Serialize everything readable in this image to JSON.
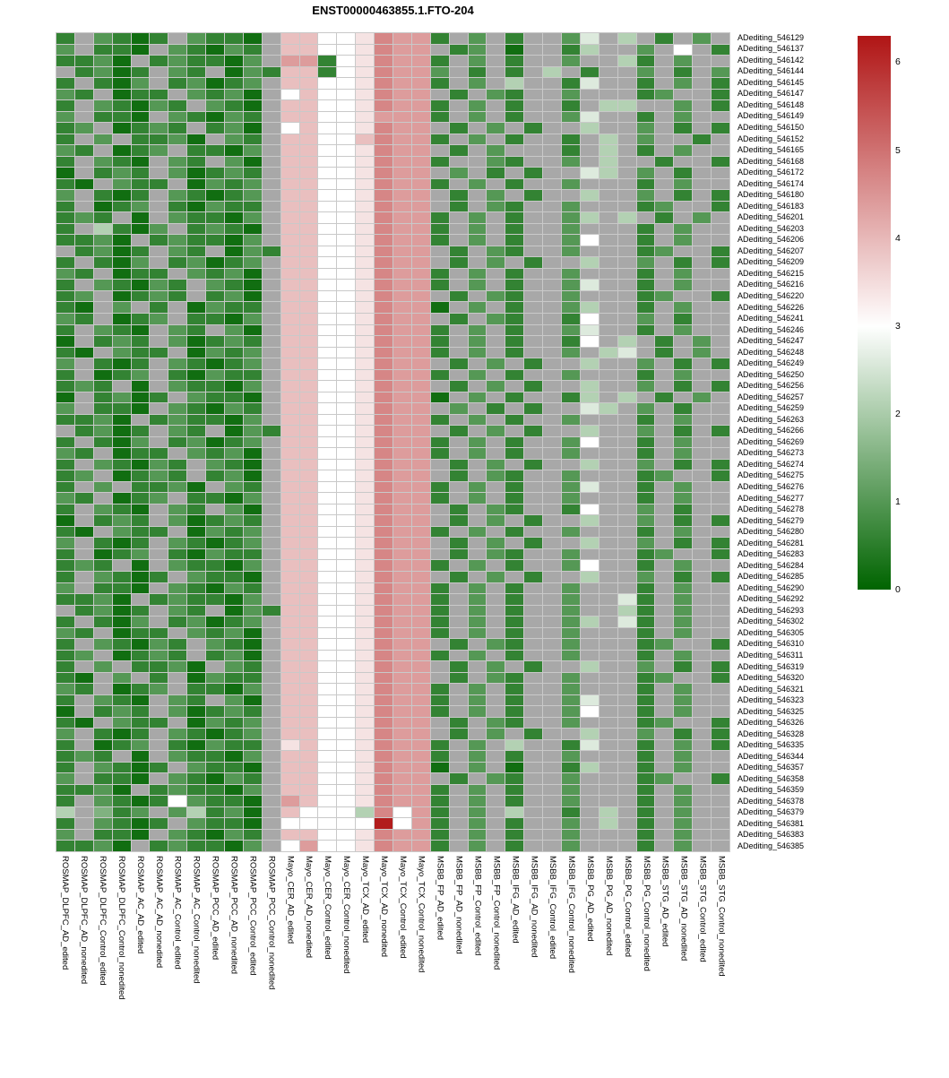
{
  "chart_data": {
    "type": "heatmap",
    "title": "ENST00000463855.1.FTO-204",
    "legend": {
      "ticks": [
        6,
        5,
        4,
        3,
        2,
        1,
        0
      ]
    },
    "na_color": "#a8a8a8",
    "colormap": {
      "low": "#006400",
      "mid": "#ffffff",
      "high": "#b01515",
      "vmin": 0,
      "vmid": 3,
      "vmax": 6.3
    },
    "columns": [
      "ROSMAP_DLPFC_AD_edited",
      "ROSMAP_DLPFC_AD_nonedited",
      "ROSMAP_DLPFC_Control_edited",
      "ROSMAP_DLPFC_Control_nonedited",
      "ROSMAP_AC_AD_edited",
      "ROSMAP_AC_AD_nonedited",
      "ROSMAP_AC_Control_edited",
      "ROSMAP_AC_Control_nonedited",
      "ROSMAP_PCC_AD_edited",
      "ROSMAP_PCC_AD_nonedited",
      "ROSMAP_PCC_Control_edited",
      "ROSMAP_PCC_Control_nonedited",
      "Mayo_CER_AD_edited",
      "Mayo_CER_AD_nonedited",
      "Mayo_CER_Control_edited",
      "Mayo_CER_Control_nonedited",
      "Mayo_TCX_AD_edited",
      "Mayo_TCX_AD_nonedited",
      "Mayo_TCX_Control_edited",
      "Mayo_TCX_Control_nonedited",
      "MSBB_FP_AD_edited",
      "MSBB_FP_AD_nonedited",
      "MSBB_FP_Control_edited",
      "MSBB_FP_Control_nonedited",
      "MSBB_IFG_AD_edited",
      "MSBB_IFG_AD_nonedited",
      "MSBB_IFG_Control_edited",
      "MSBB_IFG_Control_nonedited",
      "MSBB_PG_AD_edited",
      "MSBB_PG_AD_nonedited",
      "MSBB_PG_Control_edited",
      "MSBB_PG_Control_nonedited",
      "MSBB_STG_AD_edited",
      "MSBB_STG_AD_nonedited",
      "MSBB_STG_Control_edited",
      "MSBB_STG_Control_nonedited"
    ],
    "rows": [
      "ADediting_546129",
      "ADediting_546137",
      "ADediting_546142",
      "ADediting_546144",
      "ADediting_546145",
      "ADediting_546147",
      "ADediting_546148",
      "ADediting_546149",
      "ADediting_546150",
      "ADediting_546152",
      "ADediting_546165",
      "ADediting_546168",
      "ADediting_546172",
      "ADediting_546174",
      "ADediting_546180",
      "ADediting_546183",
      "ADediting_546201",
      "ADediting_546203",
      "ADediting_546206",
      "ADediting_546207",
      "ADediting_546209",
      "ADediting_546215",
      "ADediting_546216",
      "ADediting_546220",
      "ADediting_546226",
      "ADediting_546241",
      "ADediting_546246",
      "ADediting_546247",
      "ADediting_546248",
      "ADediting_546249",
      "ADediting_546250",
      "ADediting_546256",
      "ADediting_546257",
      "ADediting_546259",
      "ADediting_546263",
      "ADediting_546266",
      "ADediting_546269",
      "ADediting_546273",
      "ADediting_546274",
      "ADediting_546275",
      "ADediting_546276",
      "ADediting_546277",
      "ADediting_546278",
      "ADediting_546279",
      "ADediting_546280",
      "ADediting_546281",
      "ADediting_546283",
      "ADediting_546284",
      "ADediting_546285",
      "ADediting_546290",
      "ADediting_546292",
      "ADediting_546293",
      "ADediting_546302",
      "ADediting_546305",
      "ADediting_546310",
      "ADediting_546311",
      "ADediting_546319",
      "ADediting_546320",
      "ADediting_546321",
      "ADediting_546323",
      "ADediting_546325",
      "ADediting_546326",
      "ADediting_546328",
      "ADediting_546335",
      "ADediting_546344",
      "ADediting_546357",
      "ADediting_546358",
      "ADediting_546359",
      "ADediting_546378",
      "ADediting_546379",
      "ADediting_546381",
      "ADediting_546383",
      "ADediting_546385"
    ],
    "value_map": {
      "0": 0.2,
      "1": 0.6,
      "2": 1.0,
      "3": 1.5,
      "4": 2.1,
      "5": 2.6,
      "6": 3.0,
      "7": 3.4,
      "8": 3.9,
      "9": 4.4,
      "A": 4.7,
      "B": 5.2,
      "C": 6.2
    },
    "values_encoded": [
      "1.2101.2110.88667A991.2.1..25.4.1.2.",
      "2.110.21021.88667A99.12.0..14..2.6.1",
      "1120.121102.99167A991.2.1..2..41.2..",
      ".1201.21.02188167A992.1.1.4.1..2.1.2",
      "1.102.12012.88667A991.2.4..15..1.2.1",
      "21.011.2120.68667A99.1.21..2...12..1",
      "1.21021.210.88667A991.2.1..1.44..2.1",
      "2.110.21021.886679991.2.1..25..1.2..",
      "12.0121.120.68667A99.1.2.1..4..2.1.1",
      "1.2.1120.21.88668A991.2.1..1.4.2..1.",
      "21.012.1102.88667A99.1.2...1.4.1.2..",
      "1.210.21.20.88667A991..21..2.4..1..1",
      "0.121.20121.88667A99.2.1.1..54.2.1..",
      "10.211.0212.88667A991.2.1..2...1.2..",
      "2.101.21012.88667A99.1.2.1..4..2.1.1",
      "1.012.10211.88667A99.1.21..2...12..1",
      "121.0.21102.88667A991.2.1..24.4.1.2.",
      "1.4102.1210.88667A991.2.1..2...1.2..",
      "1120.121102.88667A991.2.1..26..1.2..",
      ".1201.21.02188667A99.1.21..2...12..1",
      "1.102.12012.88667A99.1.2.1..4..2.1.1",
      "21.011.2120.88667A991.2.1..2...1.2..",
      "1.21021.210.88667A991.2.1..25..1.2..",
      "12.0121.120.88667A99.1.21..2...12..1",
      "10.2.1.0211.88667A990.2.1..24..1.2..",
      "21.012.1102.88667A99.1.21..16..2.1..",
      "1.210.21.20.88667A991.2.1..25..1.2..",
      "0.121.20121.88667A991.2.1..16.4.1.2.",
      "10.211.0212.88667A991.2.1..2.45.1.2.",
      "2.101.21012.88667A99.1.2.1..4..2.1.1",
      "1.012.10211.88667A991.2.1..2...1.2..",
      "121.0.21102.88667A99.1.2.1..4..2.1.1",
      "0.1201.2110.88667A990.2.1..14.4.1.2.",
      "2.110.21021.88667A99.2.1.1..54.2.1..",
      "1120.121102.88667A991.2.1..2...1.2..",
      ".1201.21.02188667A99.1.2.1..4..2.1.1",
      "1.102.12012.88667A991.2.1..26..1.2..",
      "21.011.2120.88667A991.2.1..2...1.2..",
      "1.21021.210.88667A99.1.2.1..4..2.1.1",
      "12.0121.120.88667A99.1.21..2...12..1",
      "1.2.1120.21.88667A991.2.1..25..1.2..",
      "21.012.1102.88667A991.2.1..2...1.2..",
      "1.210.21.20.88667A99.1.21..16..2.1..",
      "0.121.20121.88667A99.1.2.1..4..2.1.1",
      "10.211.0212.88667A991.2.1..2...1.2..",
      "2.101.21012.88667A99.1.2.1..4..2.1.1",
      "1.012.10211.88667A99.1.21..2...12..1",
      "121.0.21102.88667A991.2.1..26..1.2..",
      "1.2101.2110.88667A99.1.2.1..4..2.1.1",
      "2.110.21021.88667A991.2.1..2...1.2..",
      "1120.121102.88667A991.2.1..2..51.2..",
      ".1201.21.02188667A991.2.1..2..41.2..",
      "1.102.12012.88667A991.2.1..24.51.2..",
      "21.011.2120.88667A991.2.1..2...1.2..",
      "1.21021.210.88667A99.1.21..2...12..1",
      "12.0121.120.88667A991.2.1..2...1.2..",
      "1.2.1120.21.88667A99.1.2.1..4..2.1.1",
      "10.2.1.0211.88667A99.1.21..2...12..1",
      "21.012.1102.88667A991.2.1..2...1.2..",
      "1.210.21.20.88667A991.2.1..25..1.2..",
      "0.121.20121.88667A991.2.1..26..1.2..",
      "10.211.0212.88667A99.1.21..2...12..1",
      "2.101.21012.88667A99.1.2.1..4..2.1.1",
      "1.012.10211.78667A991.2.4..15..1.2.1",
      "121.0.21102.88667A991.2.1..2...1.2..",
      "1.2101.2110.88667A990.2.0..14..1.2..",
      "2.110.21021.88667A99.1.21..2...12..1",
      "1120.121102.88667A991.2.1..2...1.2..",
      "1.210162110.98667A991.2.1..2...1.2..",
      "4.312.24120.86664A691.2.4..1.4.1.2..",
      "1.2101.2110.66666C691.2.1..2.4.1.2..",
      "2.110.21021.88667A991.2.1..2...1.2..",
      "1120.121102.69667A991.2.1..2...1.2.."
    ]
  }
}
